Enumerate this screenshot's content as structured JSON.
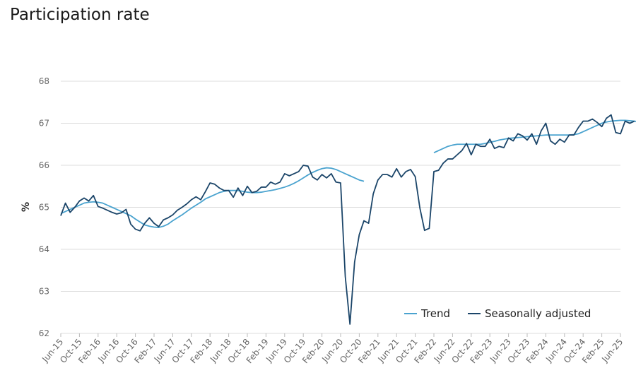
{
  "page_title": "Participation rate",
  "colors": {
    "trend": "#4aa3cf",
    "seasonally_adjusted": "#1b4569",
    "grid": "#dddddd",
    "axis_text": "#666666"
  },
  "chart_data": {
    "type": "line",
    "title": "Participation rate",
    "xlabel": "",
    "ylabel": "%",
    "ylim": [
      62,
      68
    ],
    "yticks": [
      62,
      63,
      64,
      65,
      66,
      67,
      68
    ],
    "xtick_labels": [
      "Jun-15",
      "Oct-15",
      "Feb-16",
      "Jun-16",
      "Oct-16",
      "Feb-17",
      "Jun-17",
      "Oct-17",
      "Feb-18",
      "Jun-18",
      "Oct-18",
      "Feb-19",
      "Jun-19",
      "Oct-19",
      "Feb-20",
      "Jun-20",
      "Oct-20",
      "Feb-21",
      "Jun-21",
      "Oct-21",
      "Feb-22",
      "Jun-22",
      "Oct-22",
      "Feb-23",
      "Jun-23",
      "Oct-23",
      "Feb-24",
      "Jun-24",
      "Oct-24",
      "Feb-25",
      "Jun-25"
    ],
    "x_start": "Jun-15",
    "x_step": "monthly",
    "grid": true,
    "legend_position": "bottom-right",
    "series": [
      {
        "name": "Trend",
        "color": "#4aa3cf",
        "segments": [
          {
            "start": "Jun-15",
            "values": [
              64.85,
              64.9,
              64.95,
              65.0,
              65.05,
              65.1,
              65.12,
              65.13,
              65.12,
              65.1,
              65.05,
              65.0,
              64.95,
              64.9,
              64.85,
              64.8,
              64.72,
              64.65,
              64.58,
              64.55,
              64.53,
              64.52,
              64.55,
              64.6,
              64.68,
              64.75,
              64.82,
              64.9,
              64.98,
              65.05,
              65.12,
              65.2,
              65.25,
              65.3,
              65.35,
              65.38,
              65.4,
              65.4,
              65.4,
              65.38,
              65.36,
              65.35,
              65.35,
              65.36,
              65.38,
              65.4,
              65.42,
              65.45,
              65.48,
              65.52,
              65.57,
              65.63,
              65.7,
              65.77,
              65.83,
              65.88,
              65.92,
              65.94,
              65.93,
              65.9,
              65.85,
              65.8,
              65.75,
              65.7,
              65.65,
              65.62
            ]
          },
          {
            "start": "Feb-22",
            "values": [
              66.3,
              66.35,
              66.4,
              66.45,
              66.48,
              66.5,
              66.5,
              66.5,
              66.5,
              66.5,
              66.5,
              66.52,
              66.55,
              66.57,
              66.6,
              66.62,
              66.64,
              66.65,
              66.66,
              66.67,
              66.68,
              66.69,
              66.7,
              66.71,
              66.72,
              66.72,
              66.72,
              66.72,
              66.72,
              66.72,
              66.73,
              66.75,
              66.8,
              66.85,
              66.9,
              66.95,
              67.0,
              67.03,
              67.05,
              67.06,
              67.07,
              67.07,
              67.06,
              67.05,
              67.03,
              67.01,
              67.0,
              67.0,
              67.01,
              67.02
            ]
          }
        ]
      },
      {
        "name": "Seasonally adjusted",
        "color": "#1b4569",
        "segments": [
          {
            "start": "Jun-15",
            "values": [
              64.8,
              65.1,
              64.88,
              65.0,
              65.15,
              65.22,
              65.15,
              65.28,
              65.02,
              64.98,
              64.93,
              64.88,
              64.84,
              64.87,
              64.95,
              64.6,
              64.48,
              64.44,
              64.62,
              64.75,
              64.62,
              64.54,
              64.7,
              64.75,
              64.82,
              64.93,
              65.0,
              65.08,
              65.18,
              65.25,
              65.18,
              65.37,
              65.58,
              65.55,
              65.46,
              65.4,
              65.4,
              65.24,
              65.46,
              65.28,
              65.5,
              65.35,
              65.38,
              65.48,
              65.48,
              65.6,
              65.55,
              65.6,
              65.8,
              65.75,
              65.8,
              65.85,
              66.0,
              65.98,
              65.72,
              65.65,
              65.78,
              65.7,
              65.8,
              65.6,
              65.58,
              63.35,
              62.22,
              63.7,
              64.35,
              64.68,
              64.62,
              65.32,
              65.65,
              65.78,
              65.78,
              65.72,
              65.92,
              65.72,
              65.85,
              65.9,
              65.73,
              64.98,
              64.45,
              64.5,
              65.85,
              65.88,
              66.05,
              66.15,
              66.15,
              66.25,
              66.35,
              66.52,
              66.25,
              66.5,
              66.45,
              66.45,
              66.62,
              66.4,
              66.45,
              66.42,
              66.65,
              66.58,
              66.75,
              66.7,
              66.6,
              66.75,
              66.5,
              66.82,
              67.0,
              66.58,
              66.5,
              66.62,
              66.55,
              66.72,
              66.72,
              66.9,
              67.05,
              67.05,
              67.1,
              67.02,
              66.92,
              67.12,
              67.2,
              66.78,
              66.75,
              67.05,
              67.0,
              67.05
            ]
          }
        ]
      }
    ]
  },
  "legend": {
    "trend_label": "Trend",
    "sa_label": "Seasonally adjusted"
  }
}
